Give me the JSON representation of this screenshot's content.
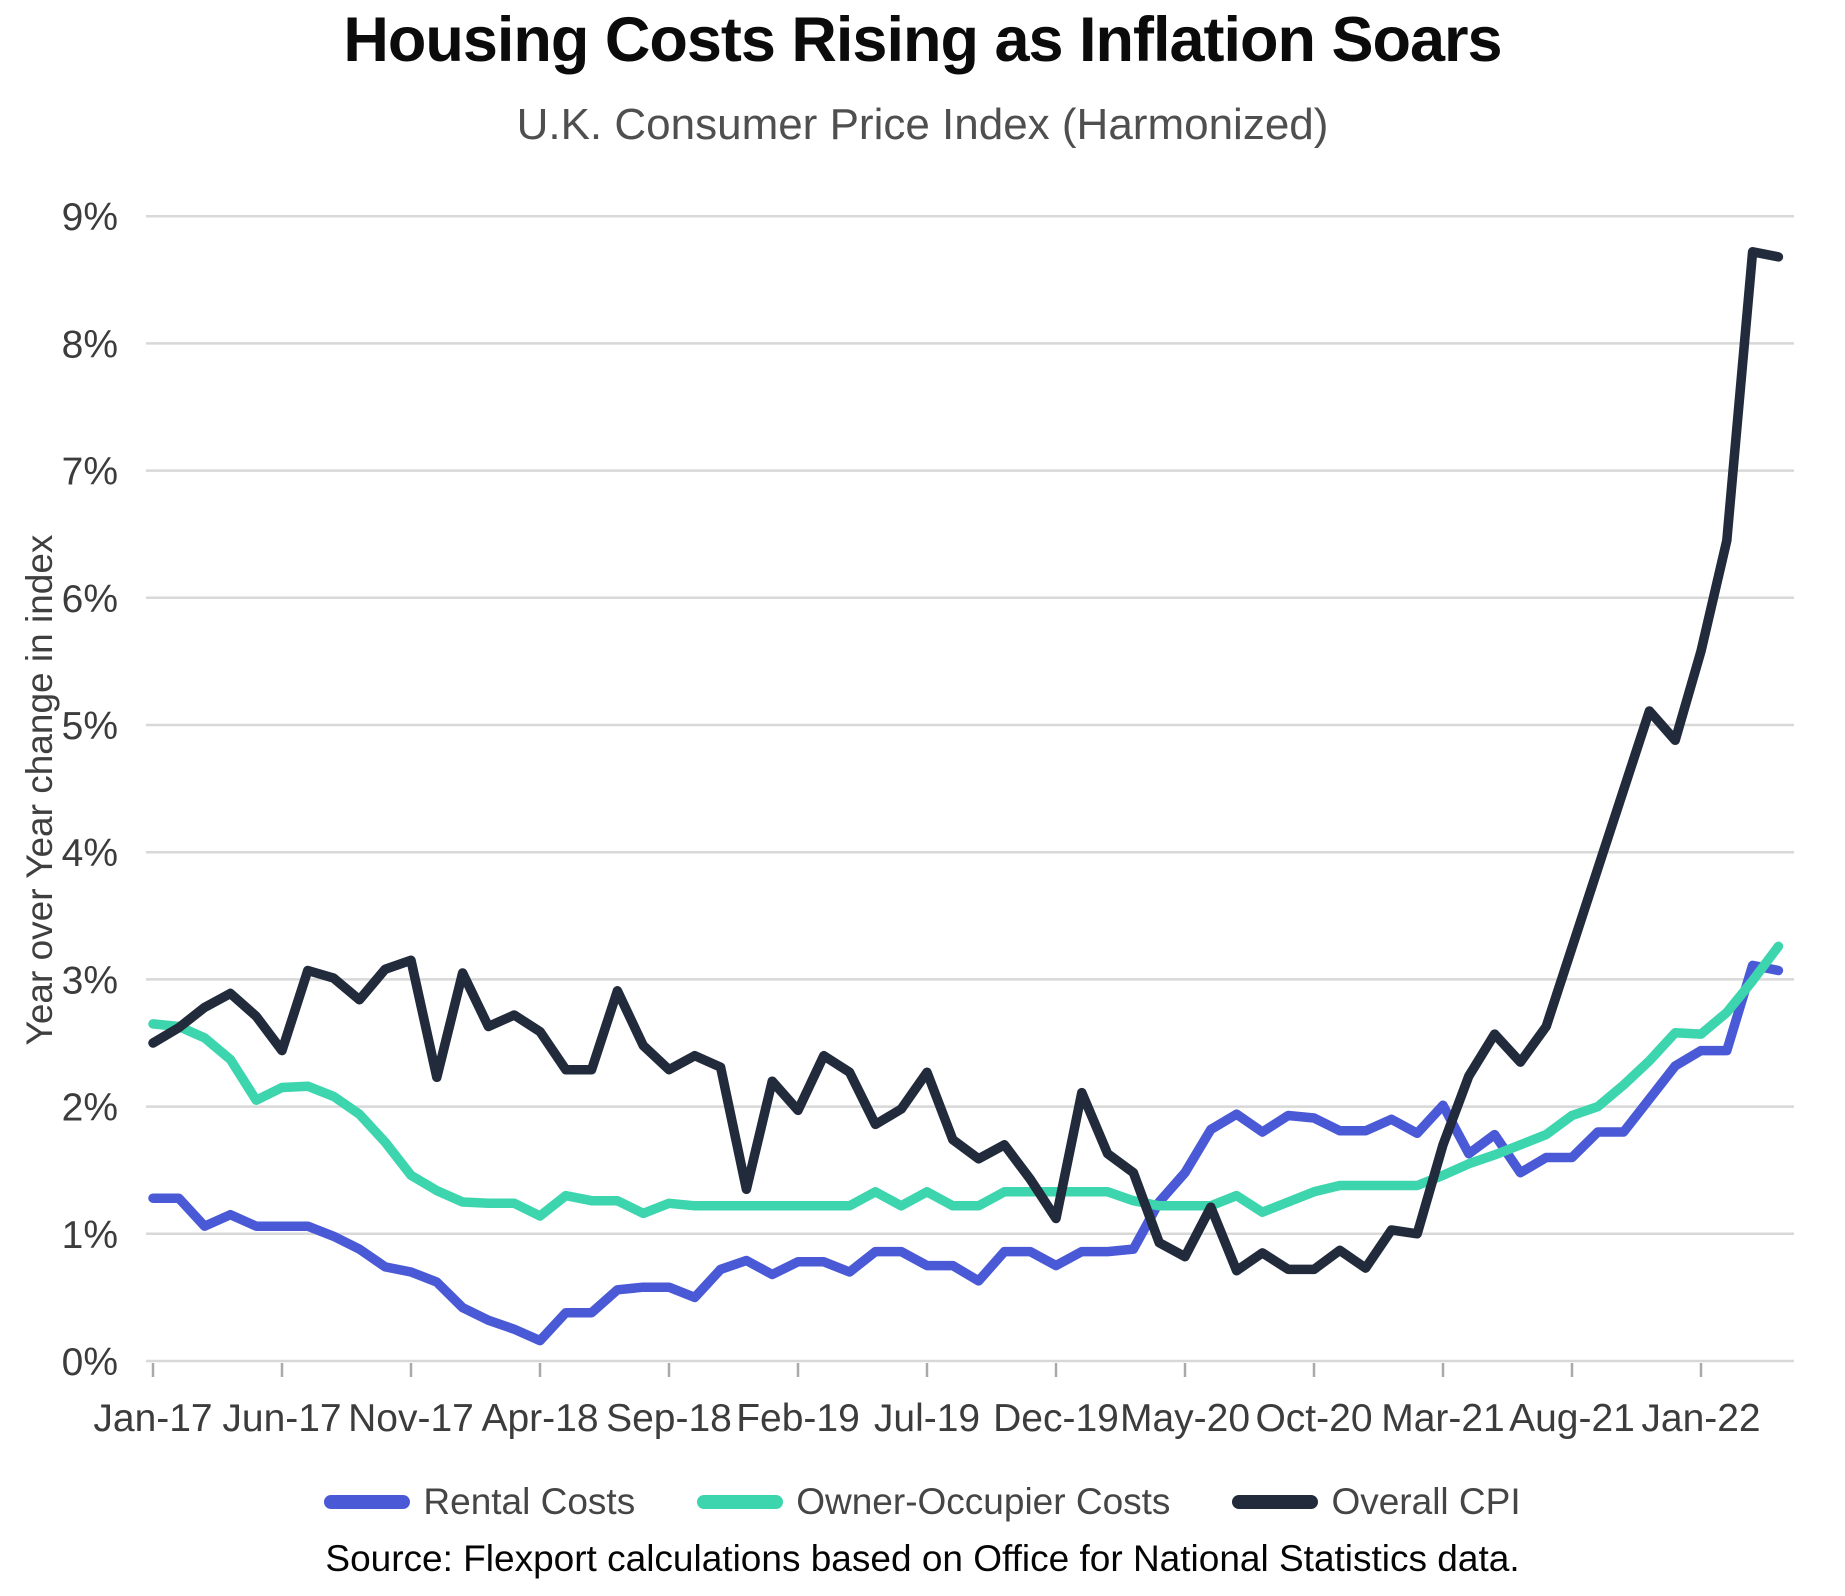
{
  "header": {
    "title": "Housing Costs Rising as Inflation Soars",
    "subtitle": "U.K. Consumer Price Index (Harmonized)"
  },
  "y_axis": {
    "label": "Year over Year change in index",
    "tick_labels": [
      "0%",
      "1%",
      "2%",
      "3%",
      "4%",
      "5%",
      "6%",
      "7%",
      "8%",
      "9%"
    ]
  },
  "source": {
    "text": "Source: Flexport calculations based on Office for National Statistics data."
  },
  "colors": {
    "rental": "#4a59d6",
    "owner_occupier": "#3cd5ad",
    "overall_cpi": "#222b3b",
    "gridline": "#d8d8d8",
    "tick_text": "#3c3c3c"
  },
  "chart_data": {
    "type": "line",
    "title": "Housing Costs Rising as Inflation Soars",
    "subtitle": "U.K. Consumer Price Index (Harmonized)",
    "xlabel": "",
    "ylabel": "Year over Year change in index",
    "ylim": [
      0,
      9
    ],
    "y_tick_step_pct": 1,
    "grid": true,
    "legend_position": "bottom",
    "x_tick_every": 5,
    "x_tick_labels": [
      "Jan-17",
      "Jun-17",
      "Nov-17",
      "Apr-18",
      "Sep-18",
      "Feb-19",
      "Jul-19",
      "Dec-19",
      "May-20",
      "Oct-20",
      "Mar-21",
      "Aug-21",
      "Jan-22"
    ],
    "x": [
      "Jan-17",
      "Feb-17",
      "Mar-17",
      "Apr-17",
      "May-17",
      "Jun-17",
      "Jul-17",
      "Aug-17",
      "Sep-17",
      "Oct-17",
      "Nov-17",
      "Dec-17",
      "Jan-18",
      "Feb-18",
      "Mar-18",
      "Apr-18",
      "May-18",
      "Jun-18",
      "Jul-18",
      "Aug-18",
      "Sep-18",
      "Oct-18",
      "Nov-18",
      "Dec-18",
      "Jan-19",
      "Feb-19",
      "Mar-19",
      "Apr-19",
      "May-19",
      "Jun-19",
      "Jul-19",
      "Aug-19",
      "Sep-19",
      "Oct-19",
      "Nov-19",
      "Dec-19",
      "Jan-20",
      "Feb-20",
      "Mar-20",
      "Apr-20",
      "May-20",
      "Jun-20",
      "Jul-20",
      "Aug-20",
      "Sep-20",
      "Oct-20",
      "Nov-20",
      "Dec-20",
      "Jan-21",
      "Feb-21",
      "Mar-21",
      "Apr-21",
      "May-21",
      "Jun-21",
      "Jul-21",
      "Aug-21",
      "Sep-21",
      "Oct-21",
      "Nov-21",
      "Dec-21",
      "Jan-22",
      "Feb-22",
      "Mar-22",
      "Apr-22"
    ],
    "series": [
      {
        "name": "Rental Costs",
        "color": "#4a59d6",
        "values": [
          1.28,
          1.28,
          1.06,
          1.15,
          1.06,
          1.06,
          1.06,
          0.98,
          0.88,
          0.74,
          0.7,
          0.62,
          0.42,
          0.32,
          0.25,
          0.16,
          0.38,
          0.38,
          0.56,
          0.58,
          0.58,
          0.5,
          0.72,
          0.79,
          0.68,
          0.78,
          0.78,
          0.7,
          0.86,
          0.86,
          0.75,
          0.75,
          0.63,
          0.86,
          0.86,
          0.75,
          0.86,
          0.86,
          0.88,
          1.25,
          1.48,
          1.82,
          1.94,
          1.8,
          1.93,
          1.91,
          1.81,
          1.81,
          1.9,
          1.79,
          2.01,
          1.63,
          1.78,
          1.48,
          1.6,
          1.6,
          1.8,
          1.8,
          2.06,
          2.32,
          2.44,
          2.44,
          3.11,
          3.07
        ]
      },
      {
        "name": "Owner-Occupier Costs",
        "color": "#3cd5ad",
        "values": [
          2.65,
          2.63,
          2.54,
          2.37,
          2.05,
          2.15,
          2.16,
          2.08,
          1.94,
          1.72,
          1.46,
          1.34,
          1.25,
          1.24,
          1.24,
          1.14,
          1.3,
          1.26,
          1.26,
          1.16,
          1.24,
          1.22,
          1.22,
          1.22,
          1.22,
          1.22,
          1.22,
          1.22,
          1.33,
          1.22,
          1.33,
          1.22,
          1.22,
          1.33,
          1.33,
          1.33,
          1.33,
          1.33,
          1.26,
          1.22,
          1.22,
          1.22,
          1.3,
          1.17,
          1.25,
          1.33,
          1.38,
          1.38,
          1.38,
          1.38,
          1.46,
          1.55,
          1.62,
          1.7,
          1.78,
          1.93,
          2.0,
          2.17,
          2.36,
          2.58,
          2.57,
          2.74,
          2.99,
          3.26
        ]
      },
      {
        "name": "Overall CPI",
        "color": "#222b3b",
        "values": [
          2.5,
          2.62,
          2.78,
          2.89,
          2.71,
          2.44,
          3.07,
          3.01,
          2.84,
          3.08,
          3.15,
          2.23,
          3.05,
          2.63,
          2.72,
          2.59,
          2.29,
          2.29,
          2.91,
          2.48,
          2.29,
          2.4,
          2.31,
          1.35,
          2.2,
          1.97,
          2.4,
          2.27,
          1.86,
          1.98,
          2.27,
          1.74,
          1.59,
          1.7,
          1.43,
          1.12,
          2.11,
          1.63,
          1.48,
          0.93,
          0.82,
          1.21,
          0.71,
          0.85,
          0.72,
          0.72,
          0.87,
          0.73,
          1.03,
          1.0,
          1.7,
          2.24,
          2.57,
          2.35,
          2.63,
          3.25,
          3.87,
          4.49,
          5.11,
          4.88,
          5.58,
          6.45,
          8.72,
          8.68
        ]
      }
    ]
  }
}
